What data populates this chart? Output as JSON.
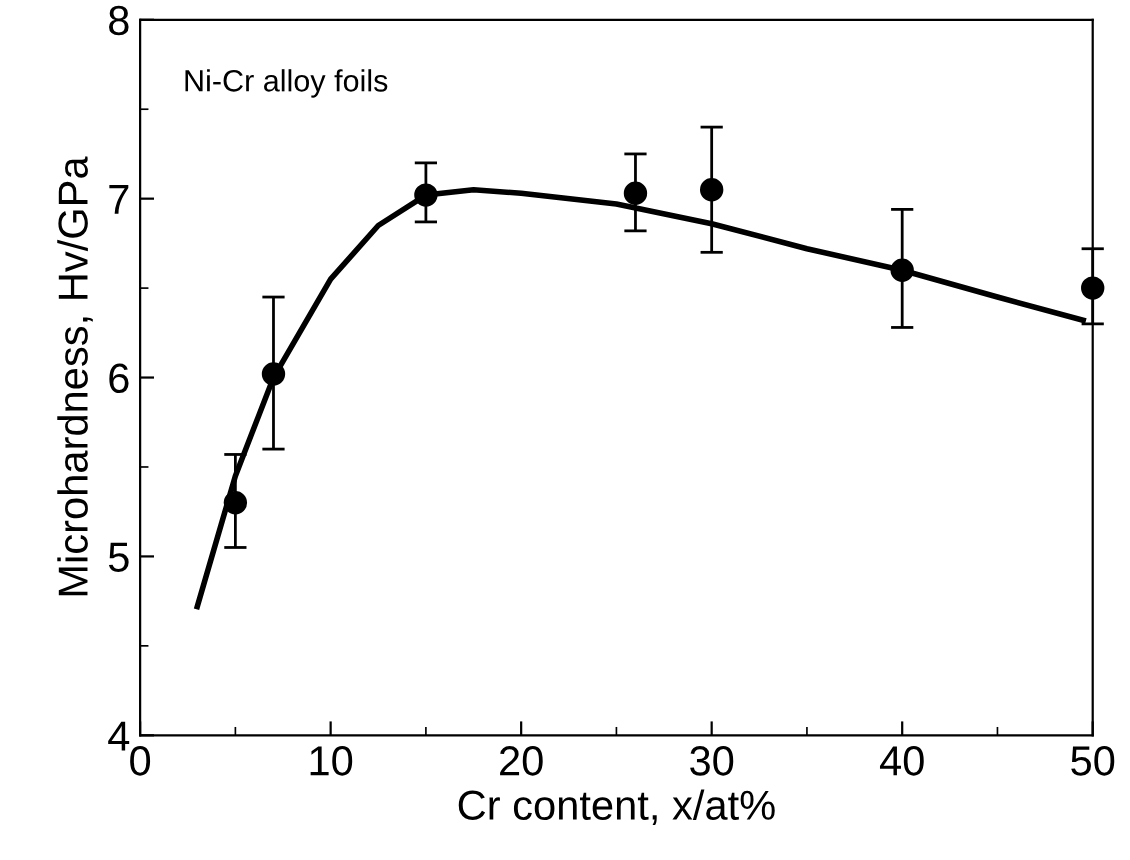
{
  "chart_data": {
    "type": "scatter",
    "xlabel": "Cr content, x/at%",
    "ylabel": "Microhardness, Hv/GPa",
    "annotations": [
      "Ni-Cr alloy foils"
    ],
    "xlim": [
      0,
      50
    ],
    "ylim": [
      4,
      8
    ],
    "xticks": [
      0,
      10,
      20,
      30,
      40,
      50
    ],
    "yticks": [
      4,
      5,
      6,
      7,
      8
    ],
    "grid": false,
    "legend": false,
    "series": [
      {
        "color": "#000000",
        "marker": "circle",
        "x": [
          5,
          7,
          15,
          26,
          30,
          40,
          50
        ],
        "values": [
          5.3,
          6.02,
          7.02,
          7.03,
          7.05,
          6.6,
          6.5
        ],
        "errors": [
          [
            5.05,
            5.57
          ],
          [
            5.6,
            6.45
          ],
          [
            6.87,
            7.2
          ],
          [
            6.82,
            7.25
          ],
          [
            6.7,
            7.4
          ],
          [
            6.28,
            6.94
          ],
          [
            6.3,
            6.72
          ]
        ]
      },
      {
        "type": "line",
        "color": "#000000",
        "line_style": "solid",
        "marker": "none",
        "x": [
          3,
          5,
          7,
          10,
          12.5,
          15,
          17.5,
          20,
          25,
          30,
          35,
          40,
          45,
          49.5
        ],
        "values": [
          4.72,
          5.45,
          6.0,
          6.55,
          6.85,
          7.02,
          7.05,
          7.03,
          6.97,
          6.86,
          6.72,
          6.6,
          6.45,
          6.32
        ]
      }
    ]
  }
}
